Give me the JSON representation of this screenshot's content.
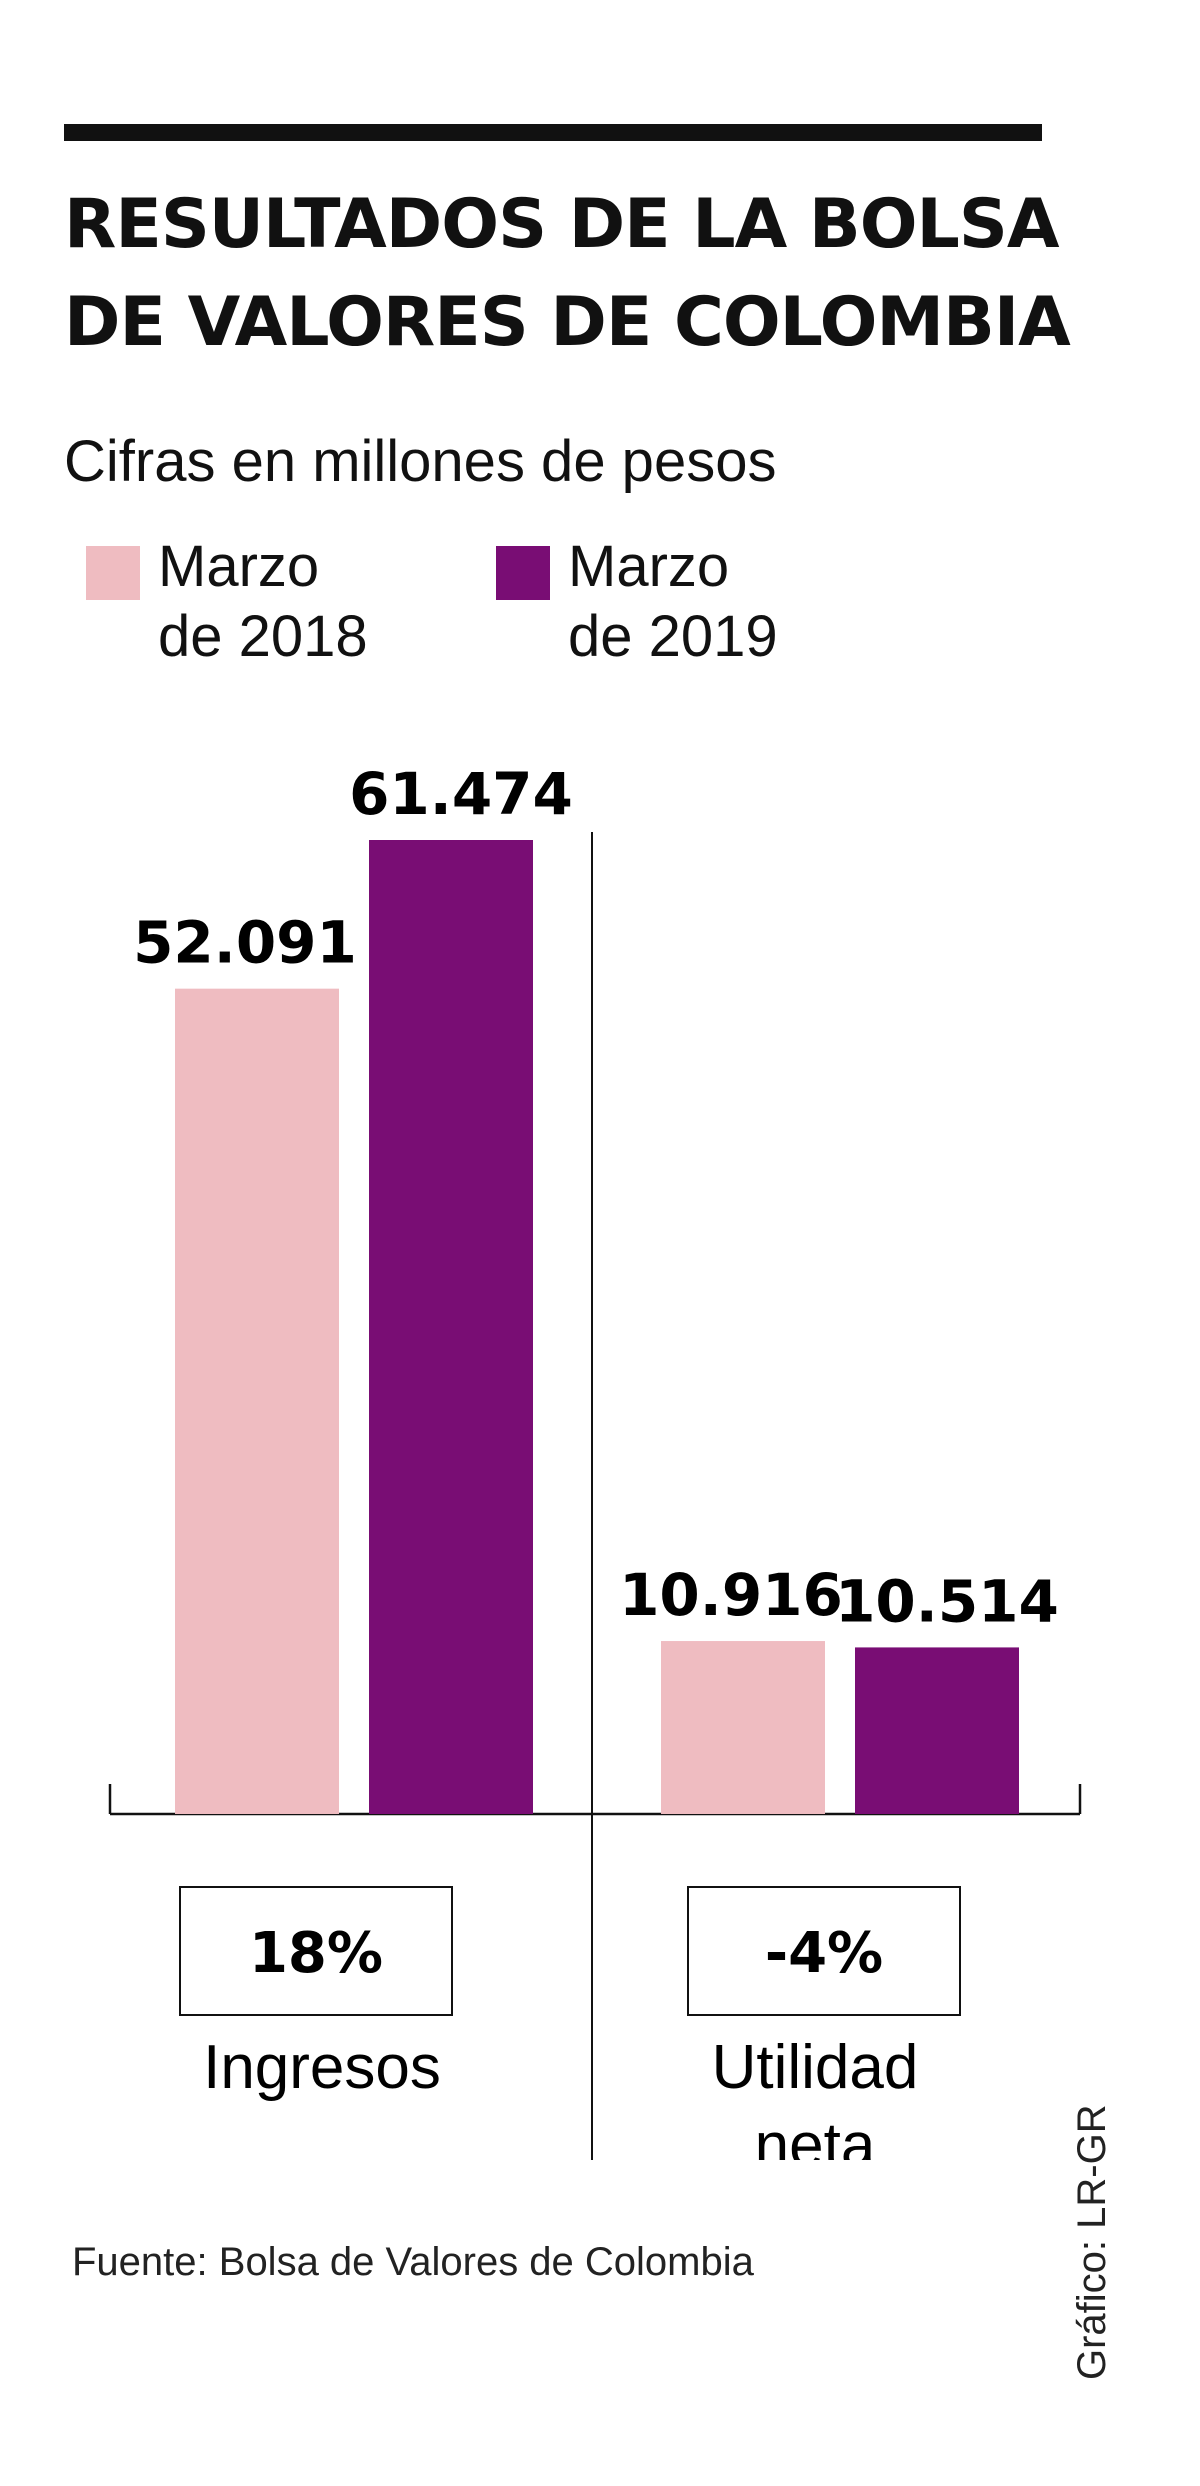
{
  "title": {
    "line1": "RESULTADOS DE LA BOLSA",
    "line2": "DE VALORES DE COLOMBIA"
  },
  "subtitle": "Cifras en millones de pesos",
  "legend": [
    {
      "line1": "Marzo",
      "line2": "de 2018",
      "color": "#efbcc1"
    },
    {
      "line1": "Marzo",
      "line2": "de 2019",
      "color": "#790d74"
    }
  ],
  "source": "Fuente: Bolsa de Valores de Colombia",
  "credit": "Gráfico: LR-GR",
  "chart_data": {
    "type": "bar",
    "title": "RESULTADOS DE LA BOLSA DE VALORES DE COLOMBIA",
    "subtitle": "Cifras en millones de pesos",
    "categories": [
      "Ingresos",
      "Utilidad neta"
    ],
    "category_label_lines": [
      [
        "Ingresos"
      ],
      [
        "Utilidad",
        "neta"
      ]
    ],
    "series": [
      {
        "name": "Marzo de 2018",
        "values": [
          52091,
          10916
        ],
        "labels": [
          "52.091",
          "10.916"
        ],
        "color": "#efbcc1"
      },
      {
        "name": "Marzo de 2019",
        "values": [
          61474,
          10514
        ],
        "labels": [
          "61.474",
          "10.514"
        ],
        "color": "#790d74"
      }
    ],
    "changes": [
      "18%",
      "-4%"
    ],
    "ylim": [
      0,
      61474
    ],
    "grid": false,
    "legend": "top-left"
  }
}
